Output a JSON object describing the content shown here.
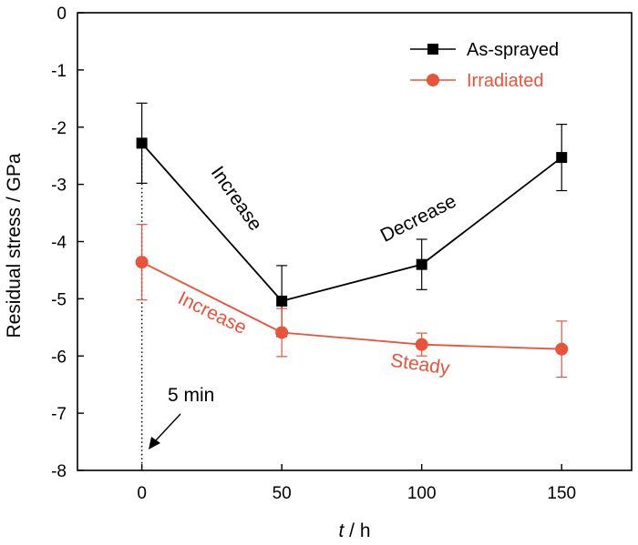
{
  "chart_data": {
    "type": "line",
    "title": "",
    "xlabel_italic": "t",
    "xlabel_rest": " / h",
    "ylabel": "Residual stress / GPa",
    "xlim": [
      -23,
      175
    ],
    "ylim": [
      -8,
      0
    ],
    "x_ticks": [
      0,
      50,
      100,
      150
    ],
    "x_tick_labels": [
      "0",
      "50",
      "100",
      "150"
    ],
    "y_ticks": [
      0,
      -1,
      -2,
      -3,
      -4,
      -5,
      -6,
      -7,
      -8
    ],
    "y_tick_labels": [
      "0",
      "-1",
      "-2",
      "-3",
      "-4",
      "-5",
      "-6",
      "-7",
      "-8"
    ],
    "grid": false,
    "legend_position": "top-right",
    "series": [
      {
        "name": "As-sprayed",
        "color": "#000000",
        "marker": "square",
        "x": [
          0,
          50,
          100,
          150
        ],
        "y": [
          -2.28,
          -5.04,
          -4.4,
          -2.53
        ],
        "err": [
          0.7,
          0.62,
          0.44,
          0.58
        ]
      },
      {
        "name": "Irradiated",
        "color": "#e8533a",
        "marker": "circle",
        "x": [
          0,
          50,
          100,
          150
        ],
        "y": [
          -4.36,
          -5.59,
          -5.8,
          -5.88
        ],
        "err": [
          0.66,
          0.42,
          0.2,
          0.49
        ]
      }
    ],
    "annotations": [
      {
        "id": "increase-black",
        "text": "Increase",
        "color": "#000000"
      },
      {
        "id": "decrease-black",
        "text": "Decrease",
        "color": "#000000"
      },
      {
        "id": "increase-red",
        "text": "Increase",
        "color": "#e8533a"
      },
      {
        "id": "steady-red",
        "text": "Steady",
        "color": "#e8533a"
      },
      {
        "id": "five-min",
        "text": "5 min",
        "color": "#000000"
      }
    ]
  }
}
